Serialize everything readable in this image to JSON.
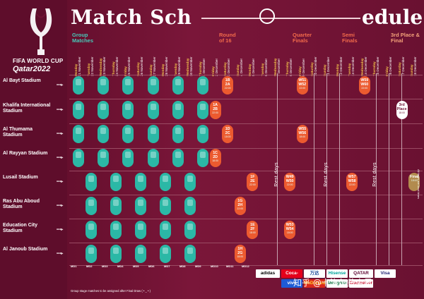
{
  "brand": {
    "line1": "FIFA WORLD CUP",
    "line2": "Qatar2022"
  },
  "title": {
    "part1": "Match Sch",
    "part2": "edule"
  },
  "phases": {
    "group": "Group Matches",
    "round16": "Round of 16",
    "quarter": "Quarter Finals",
    "semi": "Semi Finals",
    "third": "3rd Place & Final"
  },
  "colors": {
    "background": "#6e1233",
    "group": "#2bb8a6",
    "knockout": "#ec5a2f",
    "final": "#b28b4e",
    "accent_yellow": "#f2c14a"
  },
  "days": [
    {
      "dn": "Monday",
      "dd": "21 November"
    },
    {
      "dn": "Tuesday",
      "dd": "22 November"
    },
    {
      "dn": "Wednesday",
      "dd": "23 November"
    },
    {
      "dn": "Thursday",
      "dd": "24 November"
    },
    {
      "dn": "Friday",
      "dd": "25 November"
    },
    {
      "dn": "Saturday",
      "dd": "26 November"
    },
    {
      "dn": "Sunday",
      "dd": "27 November"
    },
    {
      "dn": "Monday",
      "dd": "28 November"
    },
    {
      "dn": "Tuesday",
      "dd": "29 November"
    },
    {
      "dn": "Wednesday",
      "dd": "30 November"
    },
    {
      "dn": "Thursday",
      "dd": "1 December"
    },
    {
      "dn": "Friday",
      "dd": "2 December"
    },
    {
      "dn": "Saturday",
      "dd": "3 December"
    },
    {
      "dn": "Sunday",
      "dd": "4 December"
    },
    {
      "dn": "Monday",
      "dd": "5 December"
    },
    {
      "dn": "Tuesday",
      "dd": "6 December"
    },
    {
      "dn": "Wednesday",
      "dd": "7 December"
    },
    {
      "dn": "Thursday",
      "dd": "8 December"
    },
    {
      "dn": "Friday",
      "dd": "9 December"
    },
    {
      "dn": "Saturday",
      "dd": "10 December"
    },
    {
      "dn": "Sunday",
      "dd": "11 December"
    },
    {
      "dn": "Monday",
      "dd": "12 December"
    },
    {
      "dn": "Tuesday",
      "dd": "13 December"
    },
    {
      "dn": "Wednesday",
      "dd": "14 December"
    },
    {
      "dn": "Thursday",
      "dd": "15 December"
    },
    {
      "dn": "Friday",
      "dd": "16 December"
    },
    {
      "dn": "Saturday",
      "dd": "17 December"
    },
    {
      "dn": "Sunday",
      "dd": "18 December"
    }
  ],
  "stadiums": [
    "Al Bayt Stadium",
    "Khalifa International Stadium",
    "Al Thumama Stadium",
    "Al Rayyan Stadium",
    "Lusail Stadium",
    "Ras Abu Aboud Stadium",
    "Education City Stadium",
    "Al Janoub Stadium"
  ],
  "knockouts": [
    {
      "row": 0,
      "col": 12,
      "l1": "1B",
      "l2": "2A",
      "t": "22:00",
      "kind": "ko"
    },
    {
      "row": 1,
      "col": 11,
      "l1": "1A",
      "l2": "2B",
      "t": "22:00",
      "kind": "ko"
    },
    {
      "row": 2,
      "col": 12,
      "l1": "1D",
      "l2": "2C",
      "t": "18:00",
      "kind": "ko"
    },
    {
      "row": 3,
      "col": 11,
      "l1": "1C",
      "l2": "2D",
      "t": "18:00",
      "kind": "ko"
    },
    {
      "row": 4,
      "col": 14,
      "l1": "1F",
      "l2": "2E",
      "t": "22:00",
      "kind": "ko"
    },
    {
      "row": 5,
      "col": 13,
      "l1": "1G",
      "l2": "2H",
      "t": "22:00",
      "kind": "ko"
    },
    {
      "row": 6,
      "col": 14,
      "l1": "1E",
      "l2": "2F",
      "t": "18:00",
      "kind": "ko"
    },
    {
      "row": 7,
      "col": 13,
      "l1": "1H",
      "l2": "2G",
      "t": "18:00",
      "kind": "ko"
    },
    {
      "row": 0,
      "col": 18,
      "l1": "W51",
      "l2": "W52",
      "t": "22:00",
      "kind": "ko"
    },
    {
      "row": 2,
      "col": 18,
      "l1": "W55",
      "l2": "W56",
      "t": "18:00",
      "kind": "ko"
    },
    {
      "row": 4,
      "col": 17,
      "l1": "W49",
      "l2": "W50",
      "t": "22:00",
      "kind": "ko"
    },
    {
      "row": 6,
      "col": 17,
      "l1": "W53",
      "l2": "W54",
      "t": "18:00",
      "kind": "ko"
    },
    {
      "row": 0,
      "col": 23,
      "l1": "W59",
      "l2": "W60",
      "t": "22:00",
      "kind": "ko"
    },
    {
      "row": 4,
      "col": 22,
      "l1": "W57",
      "l2": "W58",
      "t": "22:00",
      "kind": "ko"
    },
    {
      "row": 1,
      "col": 26,
      "l1": "3rd",
      "l2": "Place",
      "t": "18:00",
      "kind": "third"
    },
    {
      "row": 4,
      "col": 27,
      "l1": "",
      "l2": "Final",
      "t": "18:00",
      "kind": "final"
    }
  ],
  "rest_days": [
    "Rest days",
    "Rest days",
    "Rest days"
  ],
  "footer": {
    "heads": [
      "MD1",
      "MD2",
      "MD3",
      "MD4",
      "MD5",
      "MD6",
      "MD7",
      "MD8",
      "MD9",
      "MD10",
      "MD11",
      "MD12"
    ],
    "note": "Group stage matches to be assigned after Final Draw ( • _ • )",
    "side": "All times are local times"
  },
  "sponsors": [
    "adidas",
    "Coca-Cola",
    "万达",
    "Hisense",
    "QATAR",
    "Visa",
    "vivo",
    "McDonald's",
    "Mengniu",
    "Budweiser"
  ],
  "watermark": "知乎 @卡洛尔贫穷君"
}
